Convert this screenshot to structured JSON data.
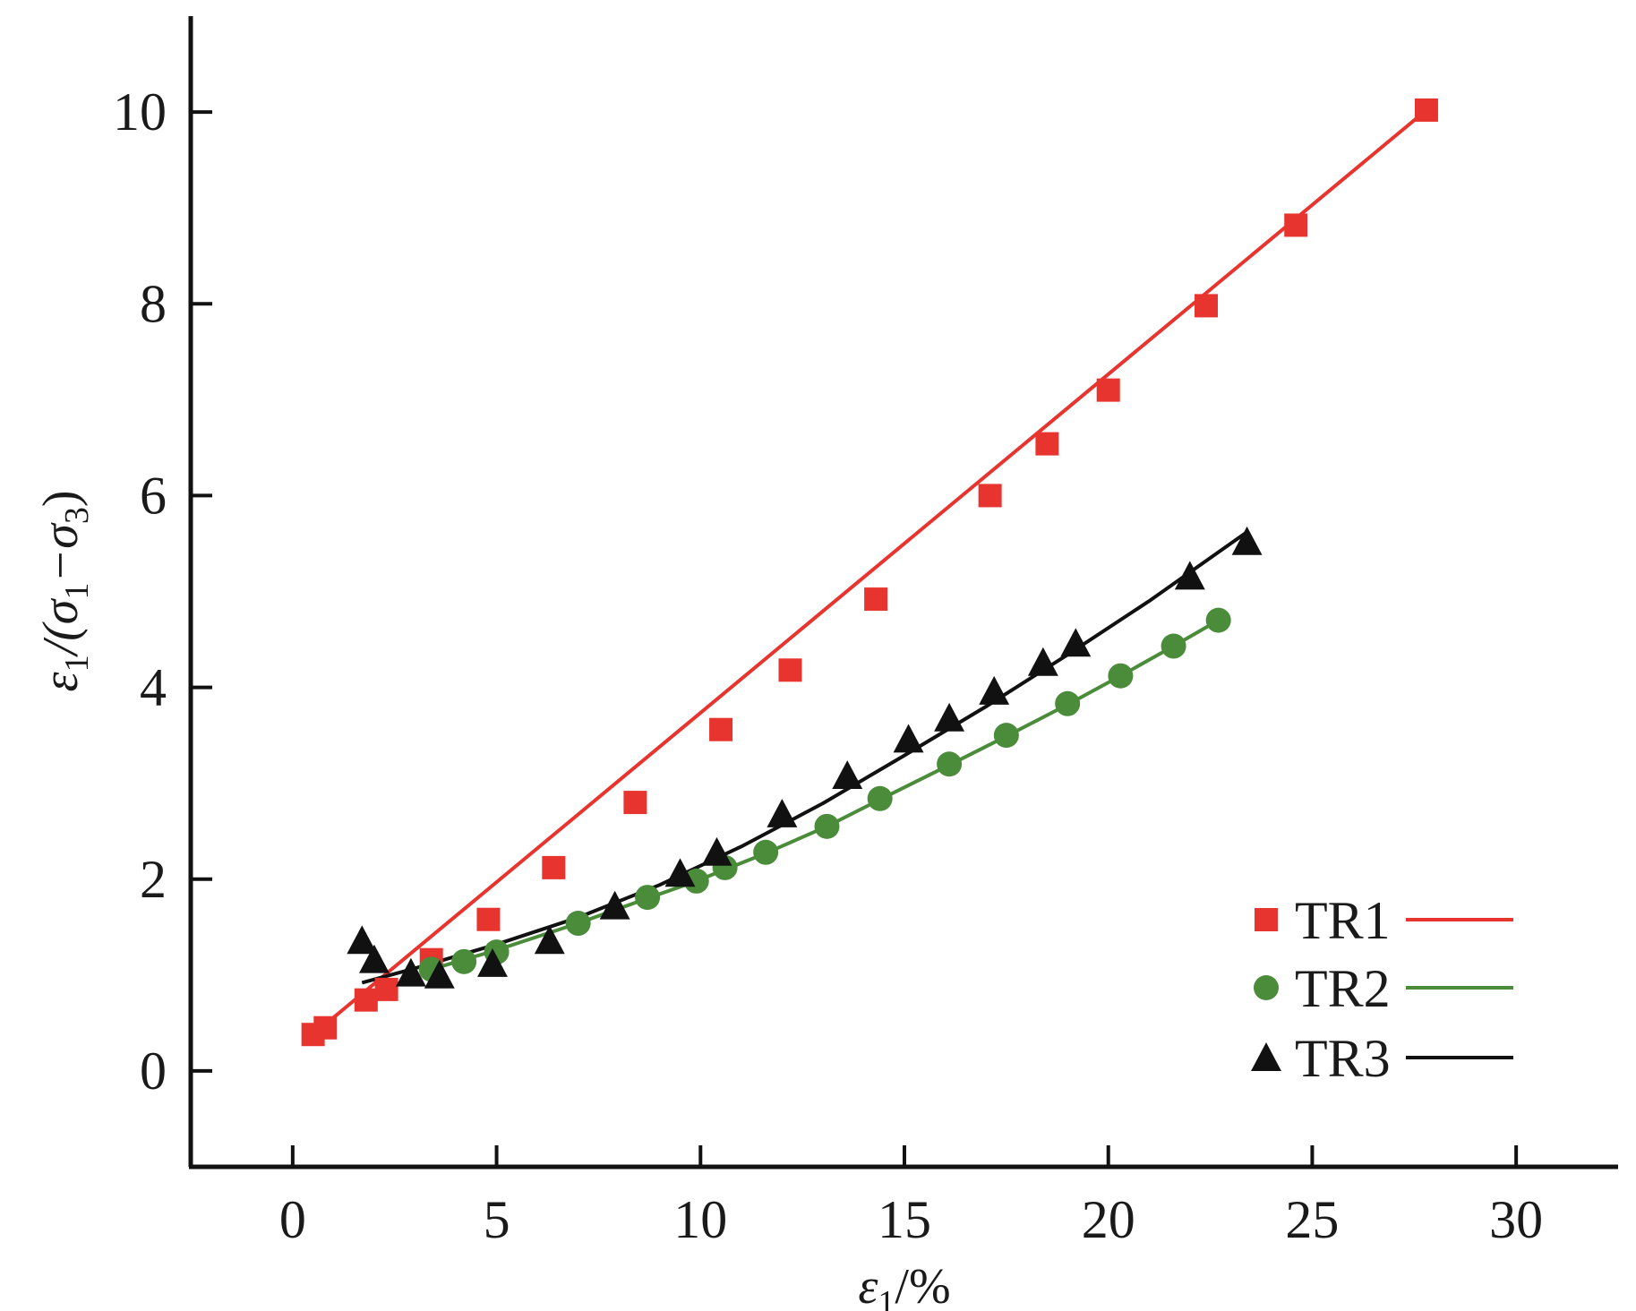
{
  "chart_data": {
    "type": "scatter",
    "title": "",
    "xlabel": {
      "main": "ε",
      "sub": "1",
      "suffix": "/%"
    },
    "ylabel": {
      "p1": "ε",
      "s1": "1",
      "p2": "/(σ",
      "s2": "1",
      "p3": "−σ",
      "s3": "3",
      "p4": ")"
    },
    "xlim": [
      -2.5,
      32.5
    ],
    "ylim": [
      -1,
      11
    ],
    "xticks": [
      0,
      5,
      10,
      15,
      20,
      25,
      30
    ],
    "yticks": [
      0,
      2,
      4,
      6,
      8,
      10
    ],
    "legend_position": "bottom-right",
    "grid": false,
    "series": [
      {
        "name": "TR1",
        "color": "#e8342e",
        "marker": "square",
        "x": [
          0.5,
          0.8,
          1.8,
          2.3,
          3.4,
          4.8,
          6.4,
          8.4,
          10.5,
          12.2,
          14.3,
          17.1,
          18.5,
          20.0,
          22.4,
          24.6,
          27.8
        ],
        "y": [
          0.38,
          0.45,
          0.74,
          0.85,
          1.16,
          1.58,
          2.12,
          2.8,
          3.56,
          4.18,
          4.92,
          6.0,
          6.54,
          7.1,
          7.98,
          8.82,
          10.02
        ],
        "fit": {
          "x": [
            0.5,
            27.8
          ],
          "y": [
            0.38,
            10.02
          ]
        }
      },
      {
        "name": "TR2",
        "color": "#4a8c3a",
        "marker": "circle",
        "x": [
          3.4,
          4.2,
          5.0,
          7.0,
          8.7,
          9.9,
          10.6,
          11.6,
          13.1,
          14.4,
          16.1,
          17.5,
          19.0,
          20.3,
          21.6,
          22.7
        ],
        "y": [
          1.06,
          1.14,
          1.24,
          1.54,
          1.81,
          1.98,
          2.12,
          2.28,
          2.55,
          2.84,
          3.2,
          3.5,
          3.83,
          4.12,
          4.43,
          4.7
        ],
        "fit": {
          "x": [
            3.4,
            5.0,
            7.0,
            8.7,
            9.9,
            10.6,
            11.6,
            13.1,
            14.4,
            16.1,
            17.5,
            19.0,
            20.3,
            21.6,
            22.7
          ],
          "y": [
            1.06,
            1.26,
            1.54,
            1.8,
            1.98,
            2.1,
            2.27,
            2.55,
            2.83,
            3.19,
            3.49,
            3.82,
            4.12,
            4.43,
            4.7
          ]
        }
      },
      {
        "name": "TR3",
        "color": "#111111",
        "marker": "triangle",
        "x": [
          1.7,
          2.0,
          2.9,
          3.6,
          4.9,
          6.3,
          7.9,
          9.5,
          10.4,
          12.0,
          13.6,
          15.1,
          16.1,
          17.2,
          18.4,
          19.2,
          22.0,
          23.4
        ],
        "y": [
          1.36,
          1.16,
          1.02,
          1.0,
          1.12,
          1.36,
          1.72,
          2.06,
          2.28,
          2.68,
          3.08,
          3.46,
          3.68,
          3.96,
          4.26,
          4.46,
          5.16,
          5.52
        ],
        "fit": {
          "x": [
            1.7,
            3.0,
            5.0,
            7.0,
            9.0,
            11.0,
            13.0,
            15.0,
            17.0,
            19.0,
            21.0,
            23.4
          ],
          "y": [
            0.92,
            1.07,
            1.32,
            1.6,
            1.94,
            2.34,
            2.79,
            3.29,
            3.8,
            4.34,
            4.9,
            5.62
          ]
        }
      }
    ]
  }
}
